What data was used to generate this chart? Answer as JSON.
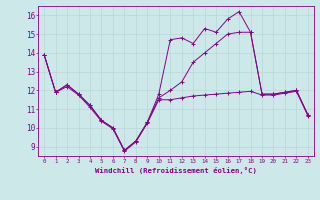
{
  "xlabel": "Windchill (Refroidissement éolien,°C)",
  "x_ticks": [
    0,
    1,
    2,
    3,
    4,
    5,
    6,
    7,
    8,
    9,
    10,
    11,
    12,
    13,
    14,
    15,
    16,
    17,
    18,
    19,
    20,
    21,
    22,
    23
  ],
  "ylim": [
    8.5,
    16.5
  ],
  "xlim": [
    -0.5,
    23.5
  ],
  "yticks": [
    9,
    10,
    11,
    12,
    13,
    14,
    15,
    16
  ],
  "background_color": "#cce8e8",
  "line_color": "#880088",
  "grid_color": "#aacccc",
  "line1_x": [
    0,
    1,
    2,
    3,
    4,
    5,
    6,
    7,
    8,
    9,
    10,
    11,
    12,
    13,
    14,
    15,
    16,
    17,
    18,
    19,
    20,
    21,
    22,
    23
  ],
  "line1_y": [
    13.9,
    11.9,
    12.3,
    11.8,
    11.2,
    10.4,
    10.0,
    8.8,
    9.3,
    10.3,
    11.8,
    14.7,
    14.8,
    14.5,
    15.3,
    15.1,
    15.8,
    16.2,
    15.1,
    11.8,
    11.8,
    11.9,
    12.0,
    10.7
  ],
  "line2_x": [
    0,
    1,
    2,
    3,
    4,
    5,
    6,
    7,
    8,
    9,
    10,
    11,
    12,
    13,
    14,
    15,
    16,
    17,
    18,
    19,
    20,
    21,
    22,
    23
  ],
  "line2_y": [
    13.9,
    11.9,
    12.3,
    11.8,
    11.2,
    10.4,
    10.0,
    8.8,
    9.3,
    10.3,
    11.6,
    12.0,
    12.45,
    13.5,
    14.0,
    14.5,
    15.0,
    15.1,
    15.1,
    11.8,
    11.8,
    11.9,
    12.0,
    10.7
  ],
  "line3_x": [
    0,
    1,
    2,
    3,
    4,
    5,
    6,
    7,
    8,
    9,
    10,
    11,
    12,
    13,
    14,
    15,
    16,
    17,
    18,
    19,
    20,
    21,
    22,
    23
  ],
  "line3_y": [
    13.9,
    11.9,
    12.2,
    11.75,
    11.1,
    10.35,
    9.95,
    8.75,
    9.25,
    10.25,
    11.5,
    11.5,
    11.6,
    11.7,
    11.75,
    11.8,
    11.85,
    11.9,
    11.95,
    11.75,
    11.75,
    11.85,
    11.95,
    10.65
  ]
}
